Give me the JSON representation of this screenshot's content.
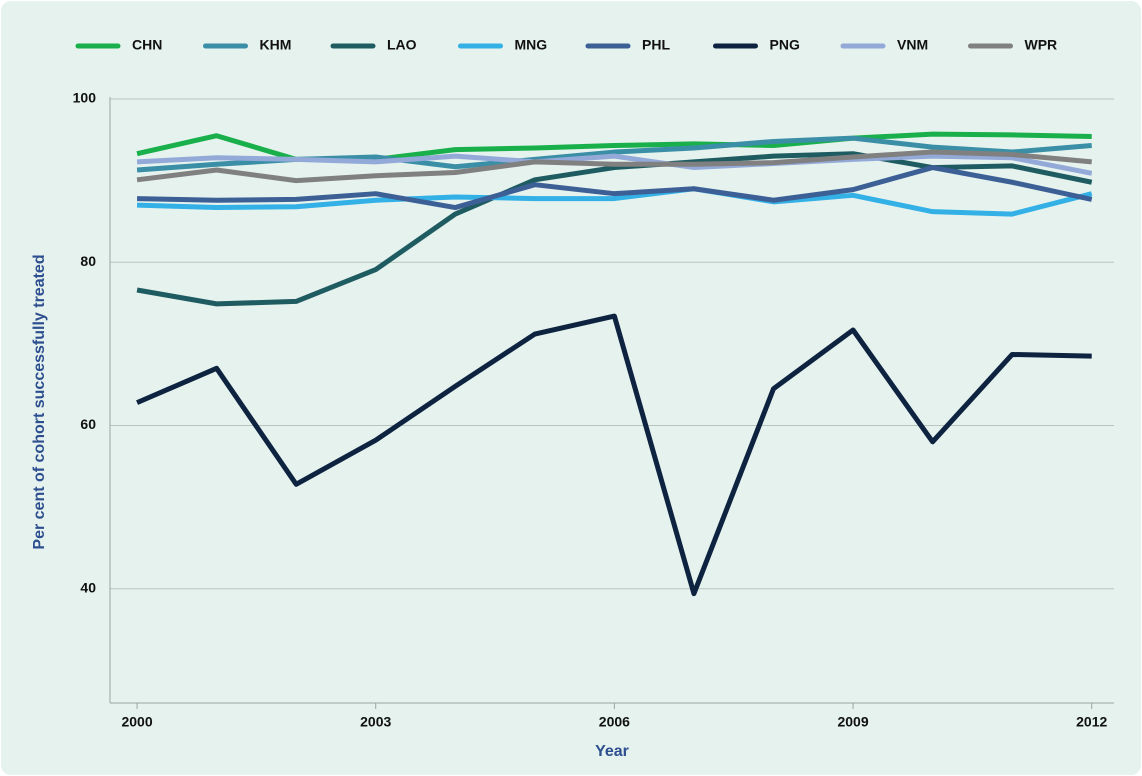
{
  "chart_data": {
    "type": "line",
    "x_label": "Year",
    "y_label": "Per cent of cohort successfully treated",
    "x": [
      2000,
      2001,
      2002,
      2003,
      2004,
      2005,
      2006,
      2007,
      2008,
      2009,
      2010,
      2011,
      2012
    ],
    "xlim": [
      1999.66,
      2012.28
    ],
    "xticks": [
      2000,
      2003,
      2006,
      2009,
      2012
    ],
    "ylim": [
      26,
      100
    ],
    "yticks": [
      40,
      60,
      80,
      100
    ],
    "grid": true,
    "legend": "top",
    "series": [
      {
        "name": "CHN",
        "color": "#19b04b",
        "values": [
          93.3,
          95.5,
          92.6,
          92.6,
          93.8,
          94.0,
          94.3,
          94.5,
          94.3,
          95.2,
          95.7,
          95.6,
          95.4
        ]
      },
      {
        "name": "KHM",
        "color": "#3a8fa6",
        "values": [
          91.3,
          92.0,
          92.6,
          92.9,
          91.7,
          92.6,
          93.5,
          94.0,
          94.8,
          95.2,
          94.1,
          93.5,
          94.3
        ]
      },
      {
        "name": "LAO",
        "color": "#1f5c62",
        "values": [
          76.6,
          74.9,
          75.2,
          79.1,
          85.9,
          90.1,
          91.6,
          92.3,
          93.0,
          93.3,
          91.6,
          91.8,
          89.8
        ]
      },
      {
        "name": "MNG",
        "color": "#33b0e6",
        "values": [
          87.0,
          86.7,
          86.8,
          87.6,
          88.0,
          87.8,
          87.8,
          89.0,
          87.4,
          88.2,
          86.2,
          85.9,
          88.4
        ]
      },
      {
        "name": "PHL",
        "color": "#3c5f95",
        "values": [
          87.8,
          87.6,
          87.7,
          88.4,
          86.7,
          89.5,
          88.4,
          89.0,
          87.6,
          88.9,
          91.6,
          89.8,
          87.7
        ]
      },
      {
        "name": "PNG",
        "color": "#0d2340",
        "values": [
          62.8,
          67.0,
          52.8,
          58.2,
          64.8,
          71.2,
          73.4,
          39.4,
          64.5,
          71.7,
          58.0,
          68.7,
          68.5
        ]
      },
      {
        "name": "VNM",
        "color": "#93a9d8",
        "values": [
          92.3,
          92.8,
          92.6,
          92.3,
          93.0,
          92.3,
          93.0,
          91.6,
          92.1,
          92.6,
          93.0,
          92.8,
          90.9
        ]
      },
      {
        "name": "WPR",
        "color": "#808080",
        "values": [
          90.1,
          91.3,
          90.0,
          90.6,
          91.0,
          92.3,
          92.0,
          92.0,
          92.2,
          92.9,
          93.5,
          93.2,
          92.3
        ]
      }
    ]
  }
}
